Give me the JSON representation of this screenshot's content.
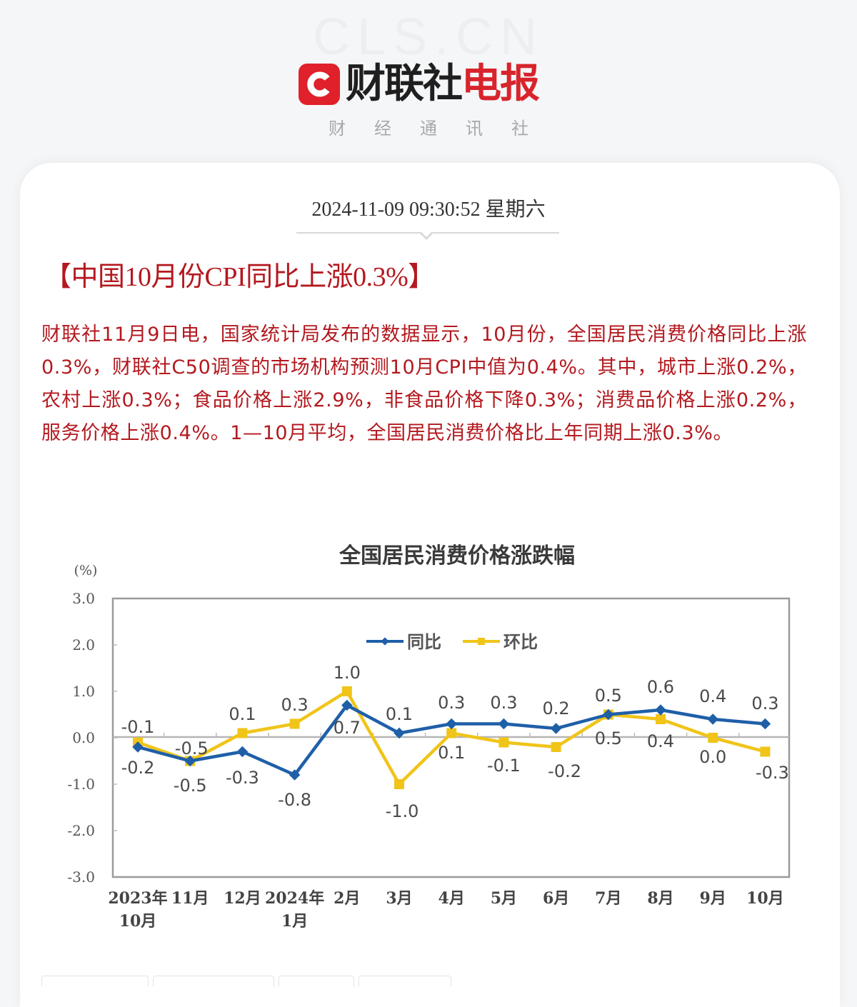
{
  "header": {
    "watermark": "CLS.CN",
    "logo_black": "财联社",
    "logo_red": "电报",
    "logo_badge_letter": "C",
    "tagline": "财经通讯社",
    "brand_color": "#e0202a"
  },
  "article": {
    "datetime": "2024-11-09 09:30:52 星期六",
    "headline": "【中国10月份CPI同比上涨0.3%】",
    "body": "财联社11月9日电，国家统计局发布的数据显示，10月份，全国居民消费价格同比上涨0.3%，财联社C50调查的市场机构预测10月CPI中值为0.4%。其中，城市上涨0.2%，农村上涨0.3%；食品价格上涨2.9%，非食品价格下降0.3%；消费品价格上涨0.2%，服务价格上涨0.4%。1—10月平均，全国居民消费价格比上年同期上涨0.3%。",
    "text_color": "#b3191f"
  },
  "chart_data": {
    "type": "line",
    "title": "全国居民消费价格涨跌幅",
    "ylabel": "(%)",
    "xlabel": "",
    "ylim": [
      -3.0,
      3.0
    ],
    "yticks": [
      "3.0",
      "2.0",
      "1.0",
      "0.0",
      "-1.0",
      "-2.0",
      "-3.0"
    ],
    "grid": false,
    "legend_position": "top-center-inside",
    "categories": [
      "2023年10月",
      "11月",
      "12月",
      "2024年1月",
      "2月",
      "3月",
      "4月",
      "5月",
      "6月",
      "7月",
      "8月",
      "9月",
      "10月"
    ],
    "category_lines": [
      [
        "2023年",
        "10月"
      ],
      [
        "11月"
      ],
      [
        "12月"
      ],
      [
        "2024年",
        "1月"
      ],
      [
        "2月"
      ],
      [
        "3月"
      ],
      [
        "4月"
      ],
      [
        "5月"
      ],
      [
        "6月"
      ],
      [
        "7月"
      ],
      [
        "8月"
      ],
      [
        "9月"
      ],
      [
        "10月"
      ]
    ],
    "series": [
      {
        "name": "同比",
        "color": "#1f5fa8",
        "marker": "diamond",
        "values": [
          -0.2,
          -0.5,
          -0.3,
          -0.8,
          0.7,
          0.1,
          0.3,
          0.3,
          0.2,
          0.5,
          0.6,
          0.4,
          0.3
        ]
      },
      {
        "name": "环比",
        "color": "#f0c419",
        "marker": "square",
        "values": [
          -0.1,
          -0.5,
          0.1,
          0.3,
          1.0,
          -1.0,
          0.1,
          -0.1,
          -0.2,
          0.5,
          0.4,
          0.0,
          -0.3
        ]
      }
    ]
  }
}
